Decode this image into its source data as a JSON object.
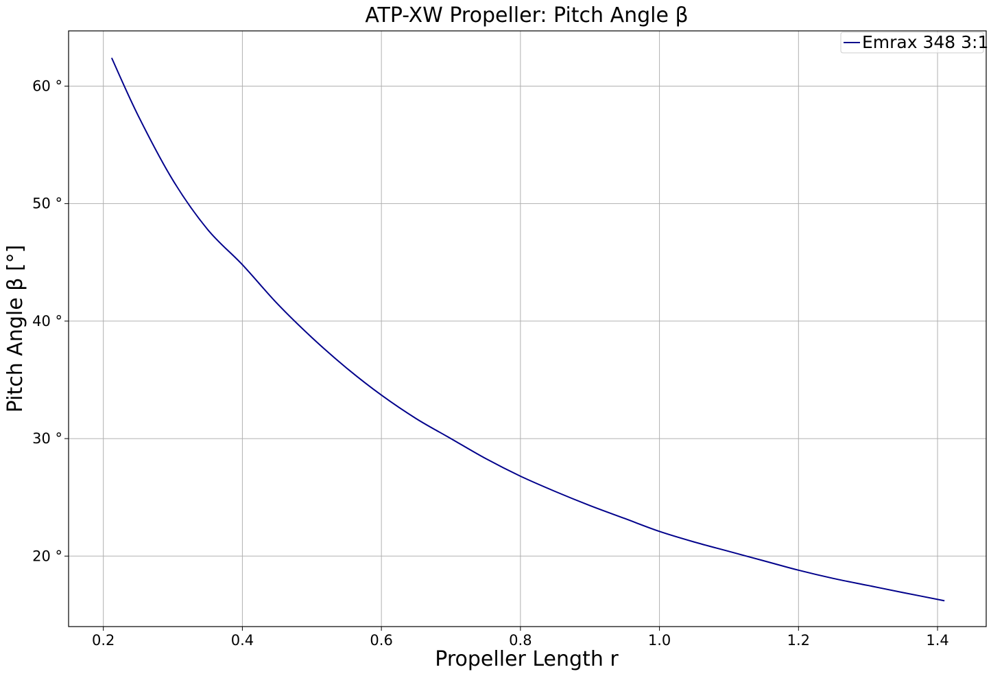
{
  "chart_data": {
    "type": "line",
    "title": "ATP-XW Propeller: Pitch Angle β",
    "xlabel": "Propeller Length r",
    "ylabel": "Pitch Angle β [°]",
    "xlim": [
      0.15,
      1.47
    ],
    "ylim": [
      14,
      64.7
    ],
    "xticks": [
      0.2,
      0.4,
      0.6,
      0.8,
      1.0,
      1.2,
      1.4
    ],
    "xtick_labels": [
      "0.2",
      "0.4",
      "0.6",
      "0.8",
      "1.0",
      "1.2",
      "1.4"
    ],
    "yticks": [
      20,
      30,
      40,
      50,
      60
    ],
    "ytick_labels": [
      "20 °",
      "30 °",
      "40 °",
      "50 °",
      "60 °"
    ],
    "grid": true,
    "legend": {
      "position": "top-right"
    },
    "series": [
      {
        "name": "Emrax 348 3:1",
        "color": "#00008b",
        "x": [
          0.212,
          0.25,
          0.3,
          0.35,
          0.4,
          0.45,
          0.5,
          0.55,
          0.6,
          0.65,
          0.7,
          0.75,
          0.8,
          0.85,
          0.9,
          0.95,
          1.0,
          1.05,
          1.1,
          1.15,
          1.2,
          1.25,
          1.3,
          1.35,
          1.41
        ],
        "y": [
          62.4,
          57.5,
          52.0,
          47.8,
          44.8,
          41.5,
          38.6,
          36.0,
          33.7,
          31.7,
          30.0,
          28.3,
          26.8,
          25.5,
          24.3,
          23.2,
          22.1,
          21.2,
          20.4,
          19.6,
          18.8,
          18.1,
          17.5,
          16.9,
          16.2
        ]
      }
    ]
  }
}
